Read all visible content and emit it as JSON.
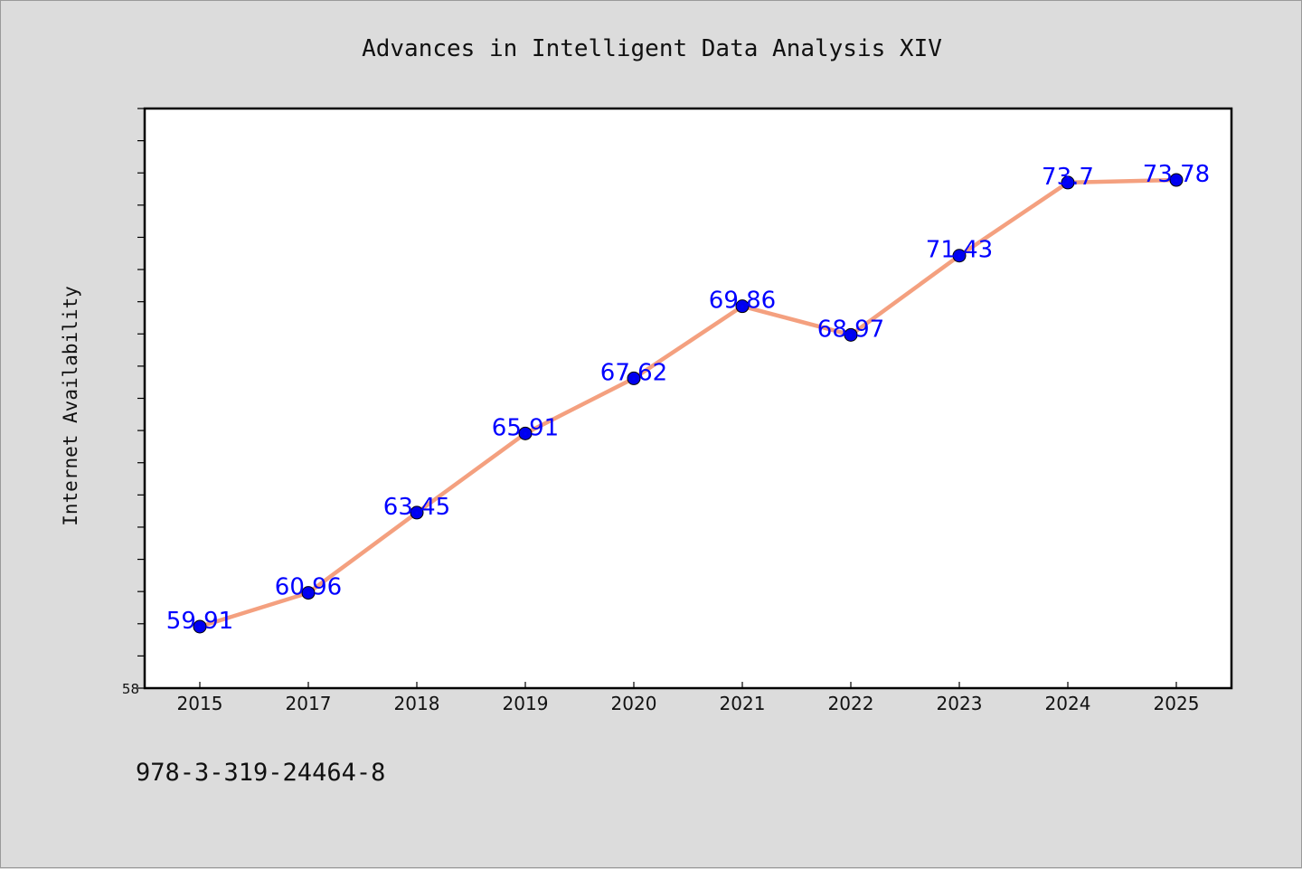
{
  "chart_data": {
    "type": "line",
    "title": "Advances in Intelligent Data Analysis XIV",
    "xlabel": "",
    "ylabel": "Internet Availability",
    "categories": [
      "2015",
      "2017",
      "2018",
      "2019",
      "2020",
      "2021",
      "2022",
      "2023",
      "2024",
      "2025"
    ],
    "series": [
      {
        "values": [
          59.91,
          60.96,
          63.45,
          65.91,
          67.62,
          69.86,
          68.97,
          71.43,
          73.7,
          73.78
        ]
      }
    ],
    "data_labels": [
      "59.91",
      "60.96",
      "63.45",
      "65.91",
      "67.62",
      "69.86",
      "68.97",
      "71.43",
      "73.7",
      "73.78"
    ],
    "ylim": [
      58,
      76
    ],
    "y_tick_labels": [
      "58"
    ],
    "y_minor_step": 1,
    "grid": false,
    "legend": "none",
    "colors": {
      "line": "#f4a07f",
      "marker": "#0000ee",
      "label": "#0000ff",
      "plot_background": "#ffffff",
      "page_background": "#dcdcdc"
    }
  },
  "footnote": "978-3-319-24464-8"
}
